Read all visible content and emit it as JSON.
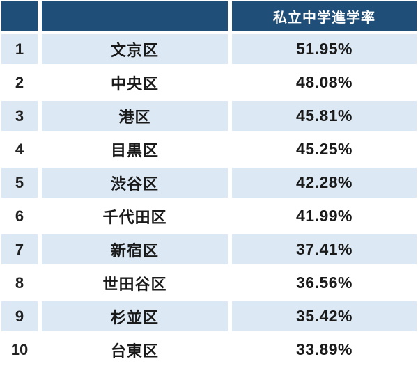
{
  "table": {
    "header": {
      "rank_label": "",
      "ward_label": "",
      "value_label": "私立中学進学率"
    },
    "rows": [
      {
        "rank": "1",
        "ward": "文京区",
        "value": "51.95%"
      },
      {
        "rank": "2",
        "ward": "中央区",
        "value": "48.08%"
      },
      {
        "rank": "3",
        "ward": "港区",
        "value": "45.81%"
      },
      {
        "rank": "4",
        "ward": "目黒区",
        "value": "45.25%"
      },
      {
        "rank": "5",
        "ward": "渋谷区",
        "value": "42.28%"
      },
      {
        "rank": "6",
        "ward": "千代田区",
        "value": "41.99%"
      },
      {
        "rank": "7",
        "ward": "新宿区",
        "value": "37.41%"
      },
      {
        "rank": "8",
        "ward": "世田谷区",
        "value": "36.56%"
      },
      {
        "rank": "9",
        "ward": "杉並区",
        "value": "35.42%"
      },
      {
        "rank": "10",
        "ward": "台東区",
        "value": "33.89%"
      }
    ]
  },
  "colors": {
    "header_bg": "#1f4e78",
    "header_text": "#ffffff",
    "row_alt_bg": "#dce9f5",
    "row_bg": "#ffffff",
    "body_text": "#1a1a1a"
  },
  "chart_data": {
    "type": "table",
    "title": "私立中学進学率",
    "columns": [
      "",
      "",
      "私立中学進学率"
    ],
    "categories": [
      "文京区",
      "中央区",
      "港区",
      "目黒区",
      "渋谷区",
      "千代田区",
      "新宿区",
      "世田谷区",
      "杉並区",
      "台東区"
    ],
    "ranks": [
      1,
      2,
      3,
      4,
      5,
      6,
      7,
      8,
      9,
      10
    ],
    "values": [
      51.95,
      48.08,
      45.81,
      45.25,
      42.28,
      41.99,
      37.41,
      36.56,
      35.42,
      33.89
    ],
    "unit": "%",
    "layout": "ranked table, alternating light-blue/white rows, navy header"
  }
}
